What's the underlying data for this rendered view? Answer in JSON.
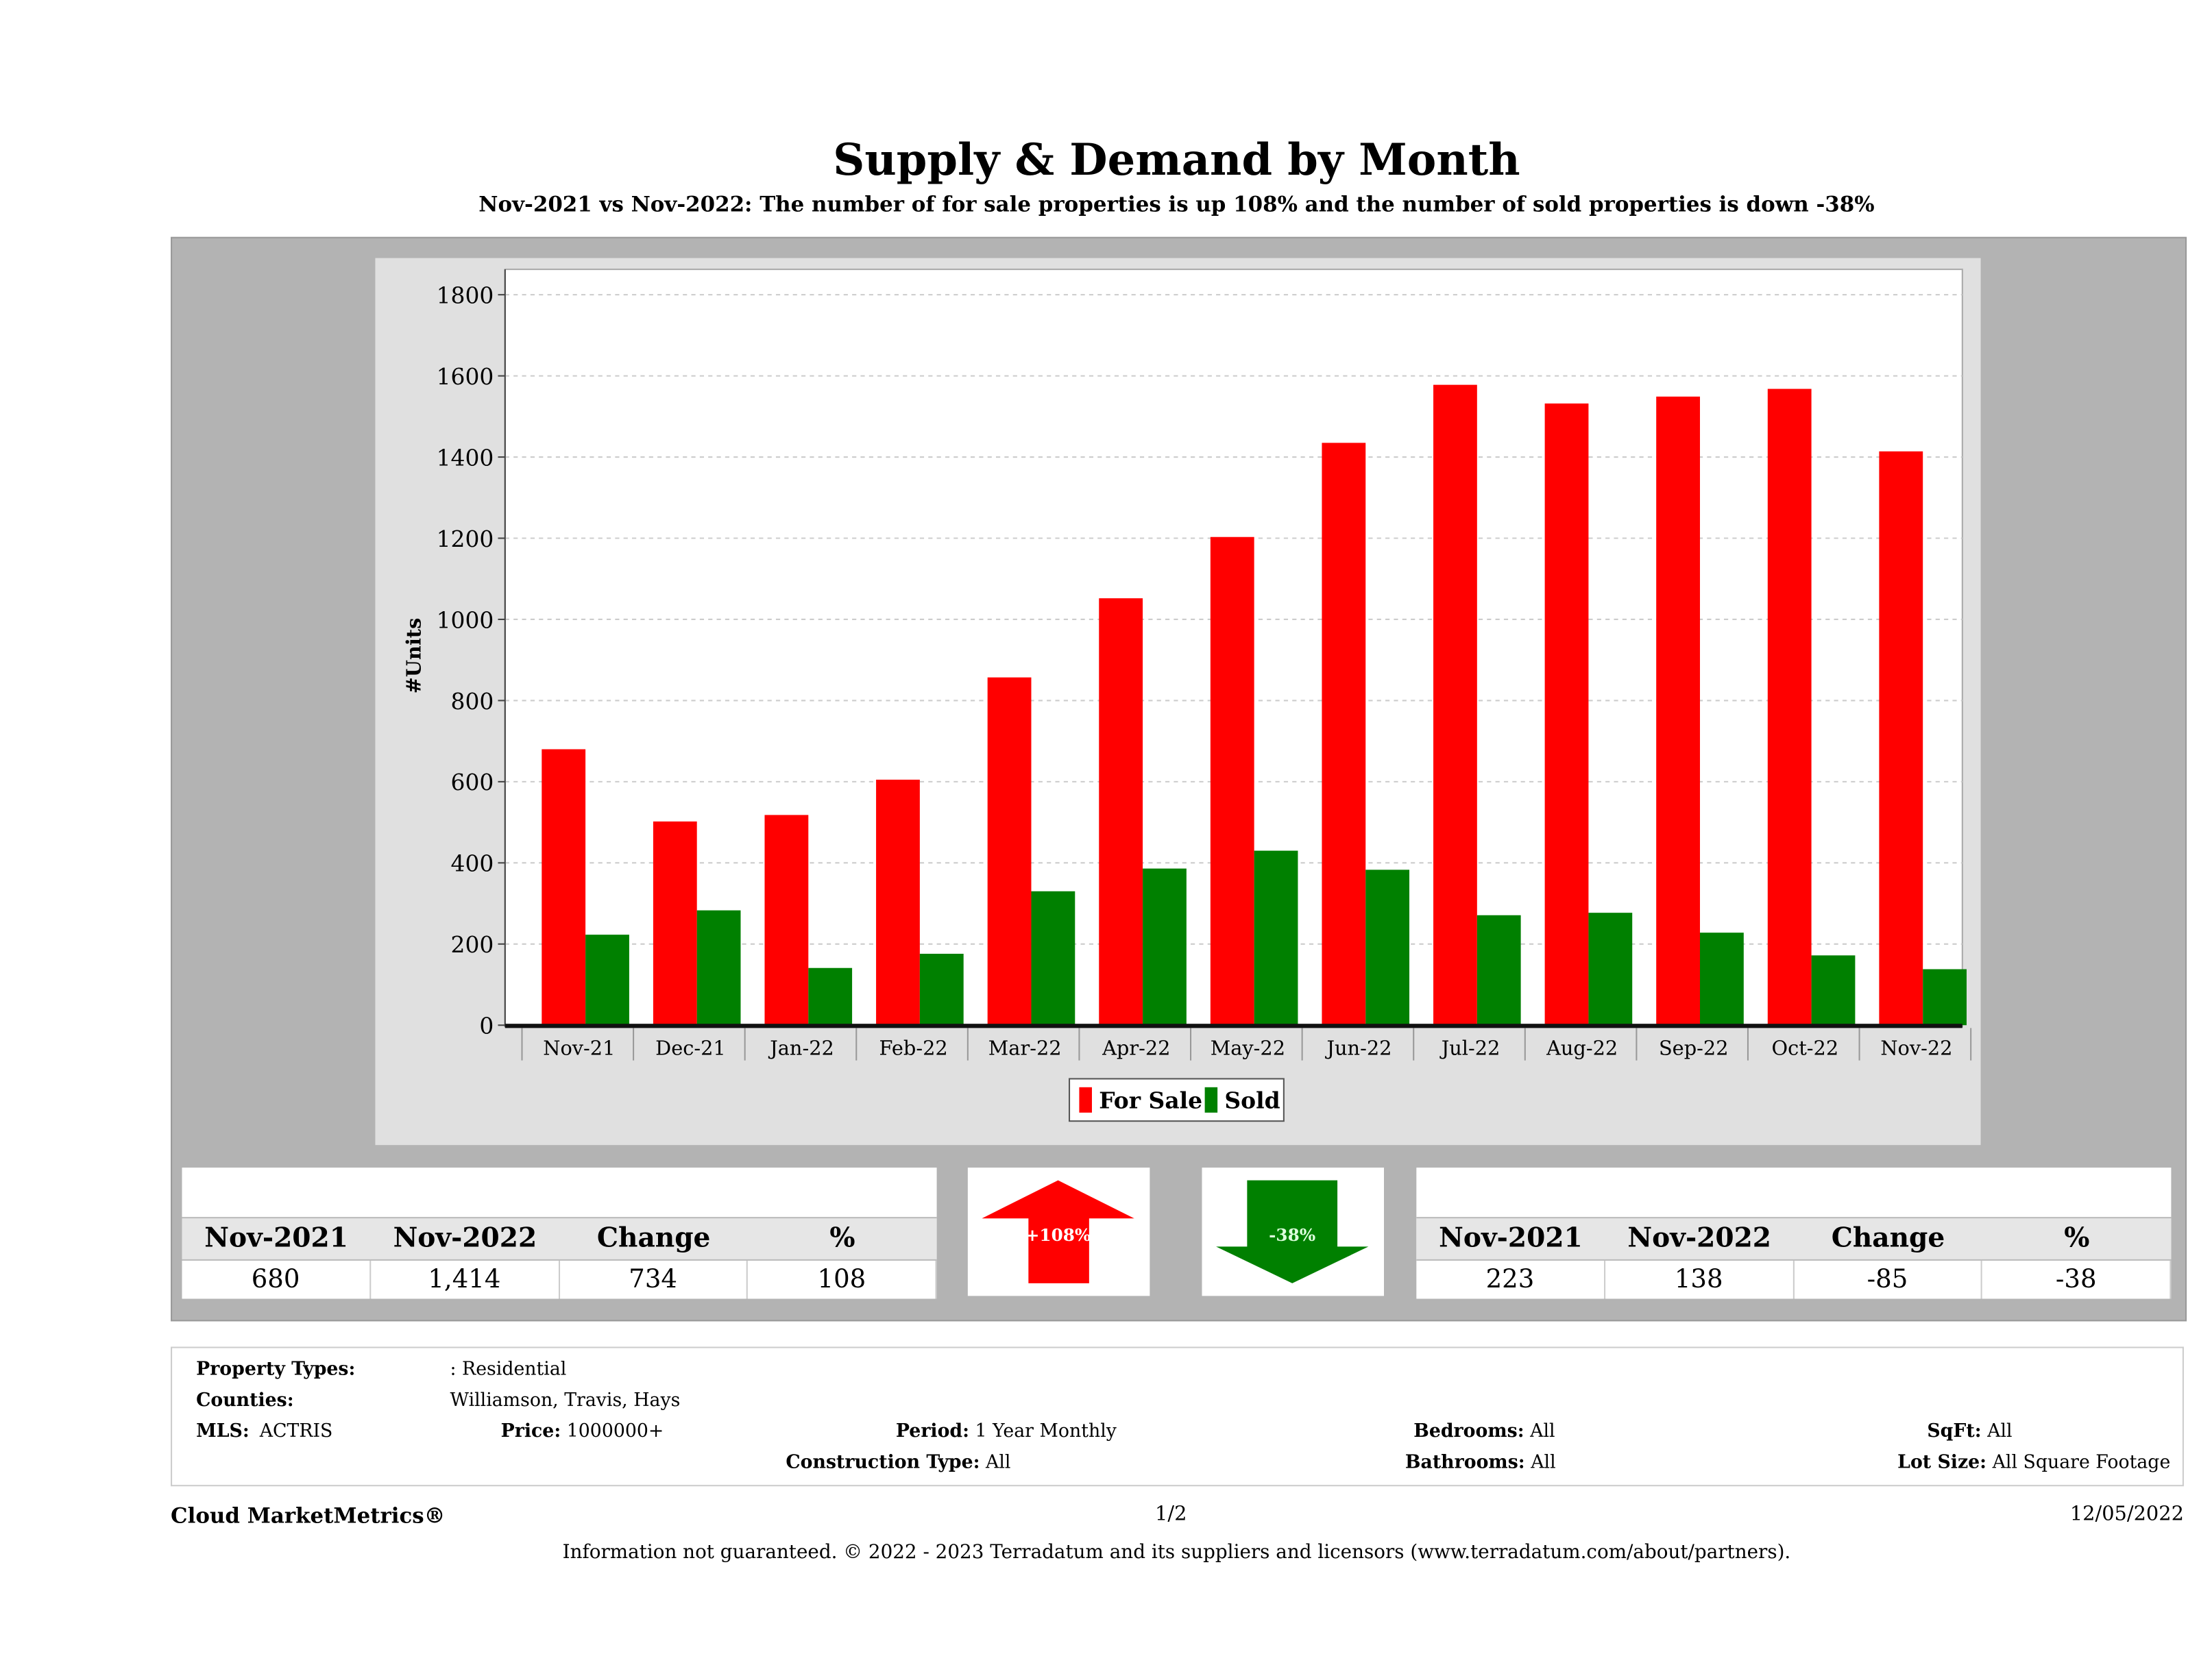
{
  "header": {
    "title": "Supply & Demand by Month",
    "subtitle": "Nov-2021 vs Nov-2022: The number of for sale properties is up 108% and the number of sold properties is down -38%"
  },
  "chart_data": {
    "type": "bar",
    "title": "Supply & Demand by Month",
    "ylabel": "#Units",
    "xlabel": "",
    "ylim": [
      0,
      1800
    ],
    "yticks": [
      0,
      200,
      400,
      600,
      800,
      1000,
      1200,
      1400,
      1600,
      1800
    ],
    "grid": true,
    "legend_position": "bottom-center",
    "categories": [
      "Nov-21",
      "Dec-21",
      "Jan-22",
      "Feb-22",
      "Mar-22",
      "Apr-22",
      "May-22",
      "Jun-22",
      "Jul-22",
      "Aug-22",
      "Sep-22",
      "Oct-22",
      "Nov-22"
    ],
    "series": [
      {
        "name": "For Sale",
        "color": "#ff0000",
        "values": [
          680,
          502,
          518,
          605,
          857,
          1052,
          1203,
          1435,
          1578,
          1532,
          1549,
          1568,
          1414
        ]
      },
      {
        "name": "Sold",
        "color": "#008000",
        "values": [
          223,
          283,
          141,
          176,
          330,
          386,
          430,
          383,
          271,
          277,
          228,
          172,
          138
        ]
      }
    ]
  },
  "for_sale_table": {
    "headers": [
      "Nov-2021",
      "Nov-2022",
      "Change",
      "%"
    ],
    "values": [
      "680",
      "1,414",
      "734",
      "108"
    ]
  },
  "sold_table": {
    "headers": [
      "Nov-2021",
      "Nov-2022",
      "Change",
      "%"
    ],
    "values": [
      "223",
      "138",
      "-85",
      "-38"
    ]
  },
  "arrows": {
    "up": {
      "label": "+108%",
      "color": "#ff0000"
    },
    "down": {
      "label": "-38%",
      "color": "#008000"
    }
  },
  "info": {
    "property_types_label": "Property Types:",
    "property_types": ": Residential",
    "counties_label": "Counties:",
    "counties": "Williamson, Travis, Hays",
    "mls_label": "MLS:",
    "mls": "ACTRIS",
    "price_label": "Price:",
    "price": "1000000+",
    "period_label": "Period:",
    "period": "1 Year Monthly",
    "construction_label": "Construction Type:",
    "construction": "All",
    "bedrooms_label": "Bedrooms:",
    "bedrooms": "All",
    "bathrooms_label": "Bathrooms:",
    "bathrooms": "All",
    "sqft_label": "SqFt:",
    "sqft": "All",
    "lotsize_label": "Lot Size:",
    "lotsize": "All Square Footage"
  },
  "footer": {
    "brand": "Cloud MarketMetrics®",
    "page": "1/2",
    "date": "12/05/2022",
    "disclaimer": "Information not guaranteed. © 2022 - 2023 Terradatum and its suppliers and licensors (www.terradatum.com/about/partners)."
  }
}
